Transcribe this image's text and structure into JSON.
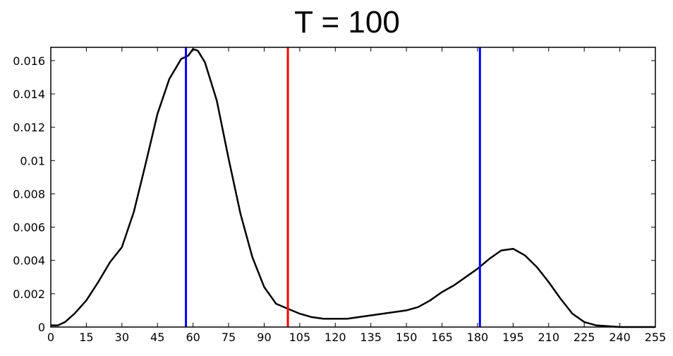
{
  "chart_data": {
    "type": "line",
    "title": "T = 100",
    "xlabel": "",
    "ylabel": "",
    "xlim": [
      0,
      255
    ],
    "ylim": [
      0,
      0.0168
    ],
    "xticks": [
      0,
      15,
      30,
      45,
      60,
      75,
      90,
      105,
      120,
      135,
      150,
      165,
      180,
      195,
      210,
      225,
      240,
      255
    ],
    "xtick_labels": [
      "0",
      "15",
      "30",
      "45",
      "60",
      "75",
      "90",
      "105",
      "120",
      "135",
      "150",
      "165",
      "180",
      "195",
      "210",
      "225",
      "240",
      "255"
    ],
    "yticks": [
      0,
      0.002,
      0.004,
      0.006,
      0.008,
      0.01,
      0.012,
      0.014,
      0.016
    ],
    "ytick_labels": [
      "0",
      "0.002",
      "0.004",
      "0.006",
      "0.008",
      "0.01",
      "0.012",
      "0.014",
      "0.016"
    ],
    "grid": false,
    "series": [
      {
        "color": "#000000",
        "x": [
          0,
          3,
          6,
          10,
          15,
          20,
          25,
          30,
          35,
          40,
          45,
          50,
          55,
          58,
          60,
          62,
          65,
          70,
          75,
          80,
          85,
          90,
          95,
          100,
          105,
          110,
          115,
          120,
          125,
          130,
          135,
          140,
          145,
          150,
          155,
          160,
          165,
          170,
          175,
          180,
          185,
          190,
          195,
          200,
          205,
          210,
          215,
          220,
          225,
          230,
          235,
          240,
          245,
          250,
          255
        ],
        "y": [
          0.0001,
          0.0001,
          0.0003,
          0.0008,
          0.0016,
          0.0027,
          0.0039,
          0.0048,
          0.0069,
          0.0098,
          0.0128,
          0.0149,
          0.0161,
          0.0163,
          0.0167,
          0.0166,
          0.0159,
          0.0136,
          0.0101,
          0.0068,
          0.0042,
          0.0024,
          0.0014,
          0.0011,
          0.0008,
          0.0006,
          0.0005,
          0.0005,
          0.0005,
          0.0006,
          0.0007,
          0.0008,
          0.0009,
          0.001,
          0.0012,
          0.0016,
          0.0021,
          0.0025,
          0.003,
          0.0035,
          0.0041,
          0.0046,
          0.0047,
          0.0043,
          0.0036,
          0.0027,
          0.0017,
          0.0008,
          0.0003,
          0.0001,
          5e-05,
          0.0,
          0.0,
          0.0,
          0.0
        ]
      }
    ],
    "vlines": [
      {
        "x": 57,
        "color": "#0000ff"
      },
      {
        "x": 100,
        "color": "#ff0000"
      },
      {
        "x": 181,
        "color": "#0000ff"
      }
    ]
  }
}
